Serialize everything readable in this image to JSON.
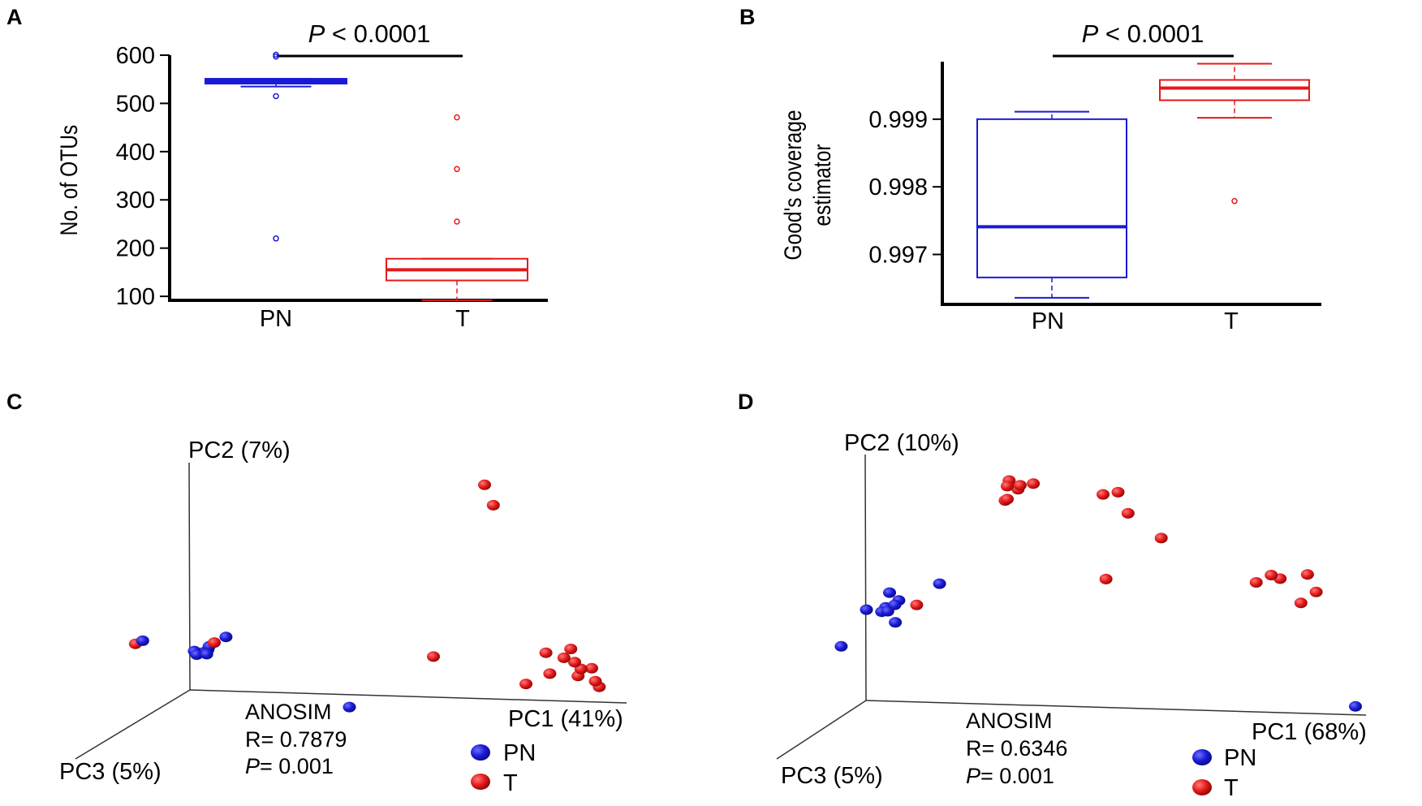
{
  "colors": {
    "pn": "#1a1ad6",
    "t": "#e41a1a"
  },
  "chart_data": [
    {
      "panel": "A",
      "type": "box",
      "categories": [
        "PN",
        "T"
      ],
      "ylabel": "No. of OTUs",
      "ylim": [
        80,
        610
      ],
      "yticks": [
        "100",
        "200",
        "300",
        "400",
        "500",
        "600"
      ],
      "significance": {
        "italic": "P",
        "text": " < 0.0001"
      },
      "boxes": [
        {
          "name": "PN",
          "q1": 541,
          "median": 546,
          "q3": 551,
          "whisker_low": 535,
          "whisker_high": 551,
          "outliers": [
            597,
            601,
            515,
            220
          ]
        },
        {
          "name": "T",
          "q1": 133,
          "median": 155,
          "q3": 178,
          "whisker_low": 92,
          "whisker_high": 178,
          "outliers": [
            471,
            364,
            255
          ]
        }
      ]
    },
    {
      "panel": "B",
      "type": "box",
      "categories": [
        "PN",
        "T"
      ],
      "ylabel_lines": [
        "Good's coverage",
        "estimator"
      ],
      "ylim": [
        0.99625,
        0.99985
      ],
      "yticks": [
        "0.997",
        "0.998",
        "0.999"
      ],
      "significance": {
        "italic": "P",
        "text": " < 0.0001"
      },
      "boxes": [
        {
          "name": "PN",
          "q1": 0.99666,
          "median": 0.99741,
          "q3": 0.999,
          "whisker_low": 0.99636,
          "whisker_high": 0.99911,
          "outliers": []
        },
        {
          "name": "T",
          "q1": 0.99928,
          "median": 0.99946,
          "q3": 0.99958,
          "whisker_low": 0.99902,
          "whisker_high": 0.99982,
          "outliers": [
            0.99779
          ]
        }
      ]
    },
    {
      "panel": "C",
      "type": "scatter",
      "subtype": "PCoA-3D (projected)",
      "axis_labels": {
        "pc1": "PC1 (41%)",
        "pc2": "PC2 (7%)",
        "pc3": "PC3 (5%)"
      },
      "anosim": {
        "title": "ANOSIM",
        "r": "R= 0.7879",
        "p_italic": "P",
        "p_rest": "= 0.001"
      },
      "legend": [
        {
          "name": "PN",
          "group": "pn"
        },
        {
          "name": "T",
          "group": "t"
        }
      ],
      "series": [
        {
          "name": "PN",
          "points": [
            [
              0.02,
              0.33,
              0.46
            ],
            [
              0.08,
              0.19,
              0.15
            ],
            [
              0.06,
              0.19,
              0.16
            ],
            [
              0.06,
              0.21,
              0.18
            ],
            [
              0.26,
              0.41,
              0.64
            ],
            [
              0.13,
              0.26,
              0.32
            ],
            [
              0.13,
              0.27,
              0.31
            ],
            [
              0.12,
              0.25,
              0.33
            ],
            [
              0.5,
              0.1,
              0.49
            ]
          ]
        },
        {
          "name": "T",
          "points": [
            [
              0.1,
              0.24,
              0.16
            ],
            [
              0.07,
              0.39,
              0.7
            ],
            [
              0.8,
              0.99,
              0.46
            ],
            [
              0.82,
              0.91,
              0.46
            ],
            [
              0.6,
              0.21,
              0.16
            ],
            [
              0.87,
              0.19,
              0.06
            ],
            [
              0.9,
              0.18,
              0.08
            ],
            [
              0.92,
              0.16,
              0.1
            ],
            [
              0.86,
              0.15,
              0.14
            ],
            [
              0.88,
              0.22,
              0.04
            ],
            [
              0.84,
              0.22,
              0.1
            ],
            [
              0.95,
              0.17,
              0.12
            ],
            [
              0.93,
              0.15,
              0.16
            ],
            [
              0.95,
              0.11,
              0.09
            ],
            [
              0.97,
              0.1,
              0.13
            ],
            [
              0.8,
              0.1,
              0.12
            ]
          ]
        }
      ]
    },
    {
      "panel": "D",
      "type": "scatter",
      "subtype": "PCoA-3D (projected)",
      "axis_labels": {
        "pc1": "PC1 (68%)",
        "pc2": "PC2 (10%)",
        "pc3": "PC3 (5%)"
      },
      "anosim": {
        "title": "ANOSIM",
        "r": "R= 0.6346",
        "p_italic": "P",
        "p_rest": "= 0.001"
      },
      "legend": [
        {
          "name": "PN",
          "group": "pn"
        },
        {
          "name": "T",
          "group": "t"
        }
      ],
      "series": [
        {
          "name": "PN",
          "points": [
            [
              0.13,
              0.48,
              0.43
            ],
            [
              0.13,
              0.46,
              0.41
            ],
            [
              0.14,
              0.48,
              0.39
            ],
            [
              0.12,
              0.46,
              0.42
            ],
            [
              0.15,
              0.5,
              0.4
            ],
            [
              0.2,
              0.49,
              0.67
            ],
            [
              0.14,
              0.54,
              0.44
            ],
            [
              0.1,
              0.48,
              0.47
            ],
            [
              0.24,
              0.58,
              0.44
            ],
            [
              0.06,
              0.35,
              0.52
            ],
            [
              1.0,
              0.06,
              0.1
            ]
          ]
        },
        {
          "name": "T",
          "points": [
            [
              0.35,
              0.93,
              0.32
            ],
            [
              0.36,
              0.96,
              0.35
            ],
            [
              0.38,
              0.93,
              0.36
            ],
            [
              0.4,
              0.94,
              0.31
            ],
            [
              0.38,
              0.94,
              0.34
            ],
            [
              0.35,
              0.88,
              0.34
            ],
            [
              0.35,
              0.88,
              0.32
            ],
            [
              0.55,
              0.92,
              0.36
            ],
            [
              0.58,
              0.93,
              0.36
            ],
            [
              0.6,
              0.85,
              0.36
            ],
            [
              0.66,
              0.75,
              0.33
            ],
            [
              0.56,
              0.6,
              0.38
            ],
            [
              0.85,
              0.59,
              0.33
            ],
            [
              0.88,
              0.62,
              0.33
            ],
            [
              0.9,
              0.61,
              0.34
            ],
            [
              0.94,
              0.61,
              0.27
            ],
            [
              0.97,
              0.56,
              0.33
            ],
            [
              0.95,
              0.53,
              0.38
            ],
            [
              0.19,
              0.49,
              0.42
            ]
          ]
        }
      ]
    }
  ]
}
